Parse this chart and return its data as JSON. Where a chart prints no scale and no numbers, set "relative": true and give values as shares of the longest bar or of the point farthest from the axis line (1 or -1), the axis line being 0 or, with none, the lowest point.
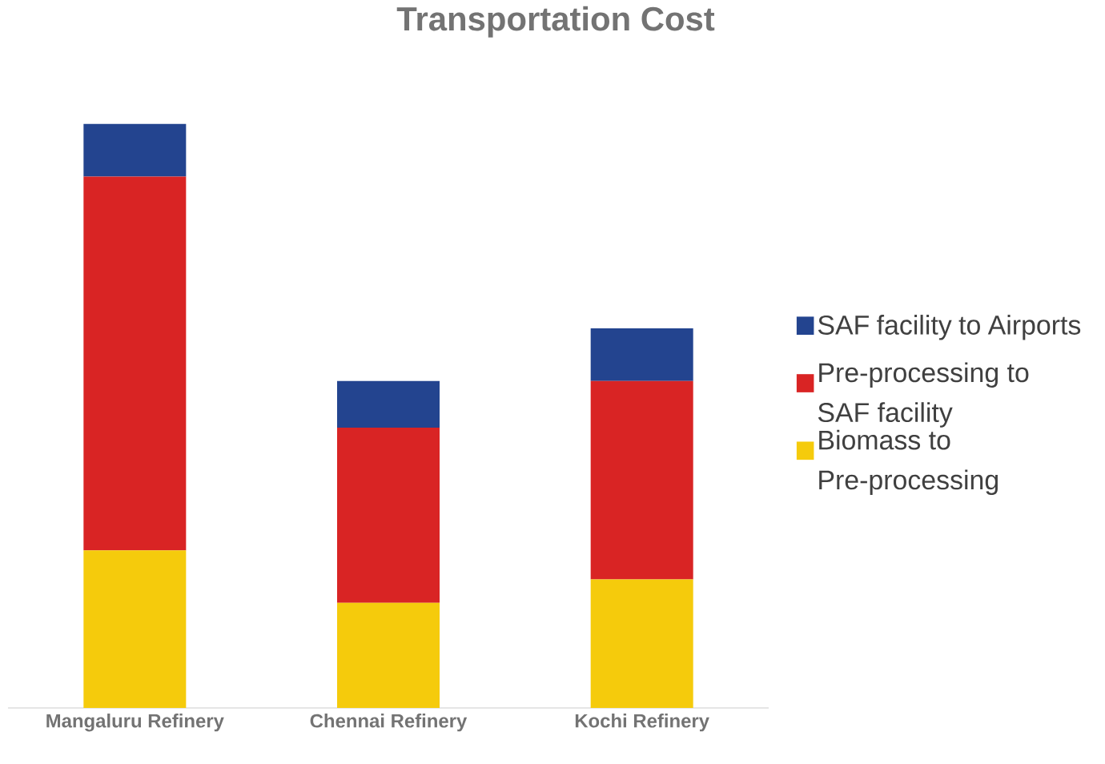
{
  "chart_data": {
    "type": "bar",
    "title": "Transportation Cost",
    "stacked": true,
    "relative": true,
    "legend": "right",
    "categories": [
      "Mangaluru Refinery",
      "Chennai Refinery",
      "Kochi Refinery"
    ],
    "series": [
      {
        "name": "Biomass to Pre-processing",
        "color": "#f5cb0c",
        "values": [
          0.27,
          0.18,
          0.22
        ]
      },
      {
        "name": "Pre-processing to SAF facility",
        "color": "#d92424",
        "values": [
          0.64,
          0.3,
          0.34
        ]
      },
      {
        "name": "SAF facility to Airports",
        "color": "#23448f",
        "values": [
          0.09,
          0.08,
          0.09
        ]
      }
    ]
  }
}
